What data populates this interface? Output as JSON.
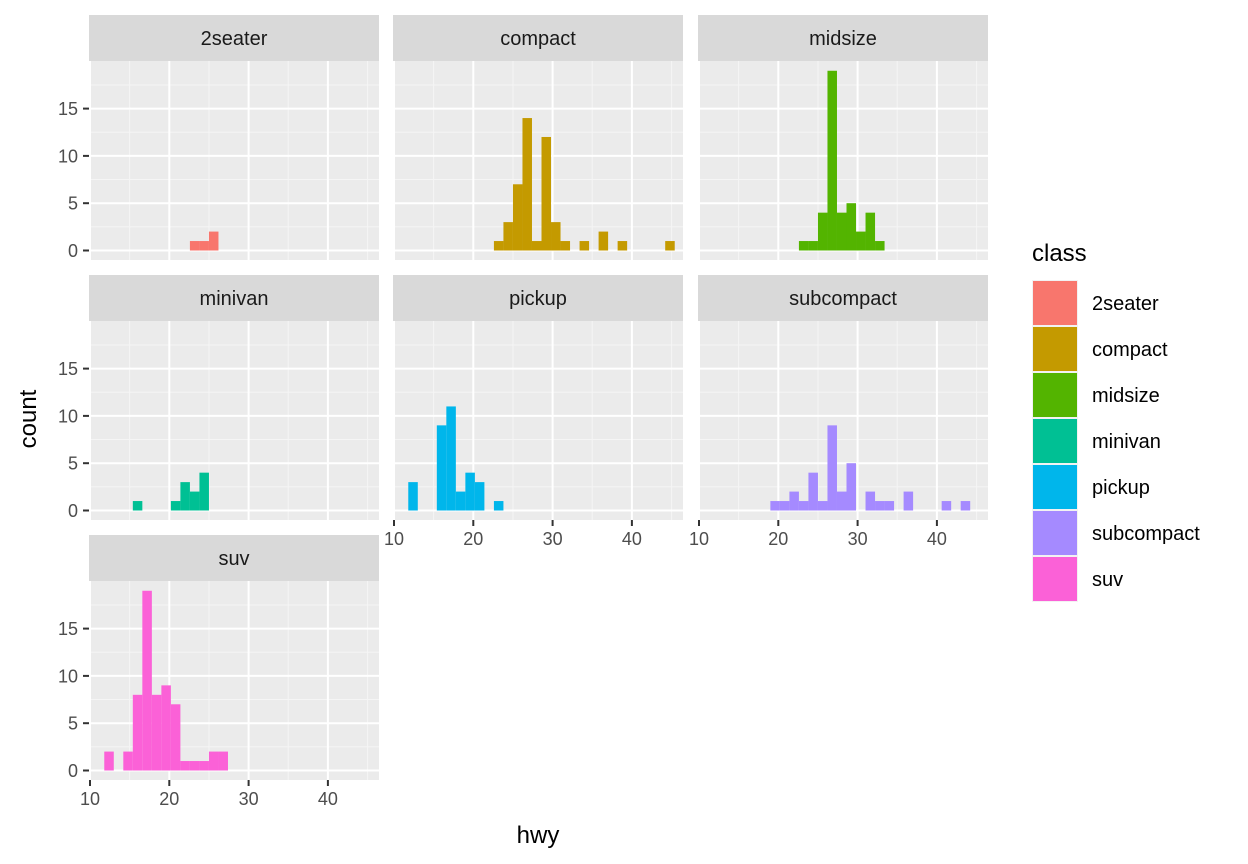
{
  "chart_data": {
    "type": "bar",
    "subtype": "histogram-facet-wrap",
    "xlabel": "hwy",
    "ylabel": "count",
    "xlim": [
      10,
      46
    ],
    "ylim": [
      0,
      19
    ],
    "x_ticks": [
      10,
      20,
      30,
      40
    ],
    "y_ticks": [
      0,
      5,
      10,
      15
    ],
    "bin_width": 1.2,
    "grid": true,
    "legend": {
      "title": "class",
      "position": "right",
      "entries": [
        {
          "name": "2seater",
          "color": "#F8766D"
        },
        {
          "name": "compact",
          "color": "#C49A00"
        },
        {
          "name": "midsize",
          "color": "#53B400"
        },
        {
          "name": "minivan",
          "color": "#00C094"
        },
        {
          "name": "pickup",
          "color": "#00B6EB"
        },
        {
          "name": "subcompact",
          "color": "#A58AFF"
        },
        {
          "name": "suv",
          "color": "#FB61D7"
        }
      ]
    },
    "panels": [
      {
        "name": "2seater",
        "color": "#F8766D",
        "bins": [
          [
            22.6,
            23.8,
            1
          ],
          [
            23.8,
            25.0,
            1
          ],
          [
            25.0,
            26.2,
            2
          ]
        ]
      },
      {
        "name": "compact",
        "color": "#C49A00",
        "bins": [
          [
            22.6,
            23.8,
            1
          ],
          [
            23.8,
            25.0,
            3
          ],
          [
            25.0,
            26.2,
            7
          ],
          [
            26.2,
            27.4,
            14
          ],
          [
            27.4,
            28.6,
            1
          ],
          [
            28.6,
            29.8,
            12
          ],
          [
            29.8,
            31.0,
            3
          ],
          [
            31.0,
            32.2,
            1
          ],
          [
            33.4,
            34.6,
            1
          ],
          [
            35.8,
            37.0,
            2
          ],
          [
            38.2,
            39.4,
            1
          ],
          [
            44.2,
            45.4,
            1
          ]
        ]
      },
      {
        "name": "midsize",
        "color": "#53B400",
        "bins": [
          [
            22.6,
            23.8,
            1
          ],
          [
            23.8,
            25.0,
            1
          ],
          [
            25.0,
            26.2,
            4
          ],
          [
            26.2,
            27.4,
            19
          ],
          [
            27.4,
            28.6,
            4
          ],
          [
            28.6,
            29.8,
            5
          ],
          [
            29.8,
            31.0,
            2
          ],
          [
            31.0,
            32.2,
            4
          ],
          [
            32.2,
            33.4,
            1
          ]
        ]
      },
      {
        "name": "minivan",
        "color": "#00C094",
        "bins": [
          [
            15.4,
            16.6,
            1
          ],
          [
            20.2,
            21.4,
            1
          ],
          [
            21.4,
            22.6,
            3
          ],
          [
            22.6,
            23.8,
            2
          ],
          [
            23.8,
            25.0,
            4
          ]
        ]
      },
      {
        "name": "pickup",
        "color": "#00B6EB",
        "bins": [
          [
            11.8,
            13.0,
            3
          ],
          [
            15.4,
            16.6,
            9
          ],
          [
            16.6,
            17.8,
            11
          ],
          [
            17.8,
            19.0,
            2
          ],
          [
            19.0,
            20.2,
            4
          ],
          [
            20.2,
            21.4,
            3
          ],
          [
            22.6,
            23.8,
            1
          ]
        ]
      },
      {
        "name": "subcompact",
        "color": "#A58AFF",
        "bins": [
          [
            19.0,
            20.2,
            1
          ],
          [
            20.2,
            21.4,
            1
          ],
          [
            21.4,
            22.6,
            2
          ],
          [
            22.6,
            23.8,
            1
          ],
          [
            23.8,
            25.0,
            4
          ],
          [
            25.0,
            26.2,
            1
          ],
          [
            26.2,
            27.4,
            9
          ],
          [
            27.4,
            28.6,
            2
          ],
          [
            28.6,
            29.8,
            5
          ],
          [
            31.0,
            32.2,
            2
          ],
          [
            32.2,
            33.4,
            1
          ],
          [
            33.4,
            34.6,
            1
          ],
          [
            35.8,
            37.0,
            2
          ],
          [
            40.6,
            41.8,
            1
          ],
          [
            43.0,
            44.2,
            1
          ]
        ]
      },
      {
        "name": "suv",
        "color": "#FB61D7",
        "bins": [
          [
            11.8,
            13.0,
            2
          ],
          [
            14.2,
            15.4,
            2
          ],
          [
            15.4,
            16.6,
            8
          ],
          [
            16.6,
            17.8,
            19
          ],
          [
            17.8,
            19.0,
            8
          ],
          [
            19.0,
            20.2,
            9
          ],
          [
            20.2,
            21.4,
            7
          ],
          [
            21.4,
            22.6,
            1
          ],
          [
            22.6,
            23.8,
            1
          ],
          [
            23.8,
            25.0,
            1
          ],
          [
            25.0,
            26.2,
            2
          ],
          [
            26.2,
            27.4,
            2
          ]
        ]
      }
    ]
  }
}
